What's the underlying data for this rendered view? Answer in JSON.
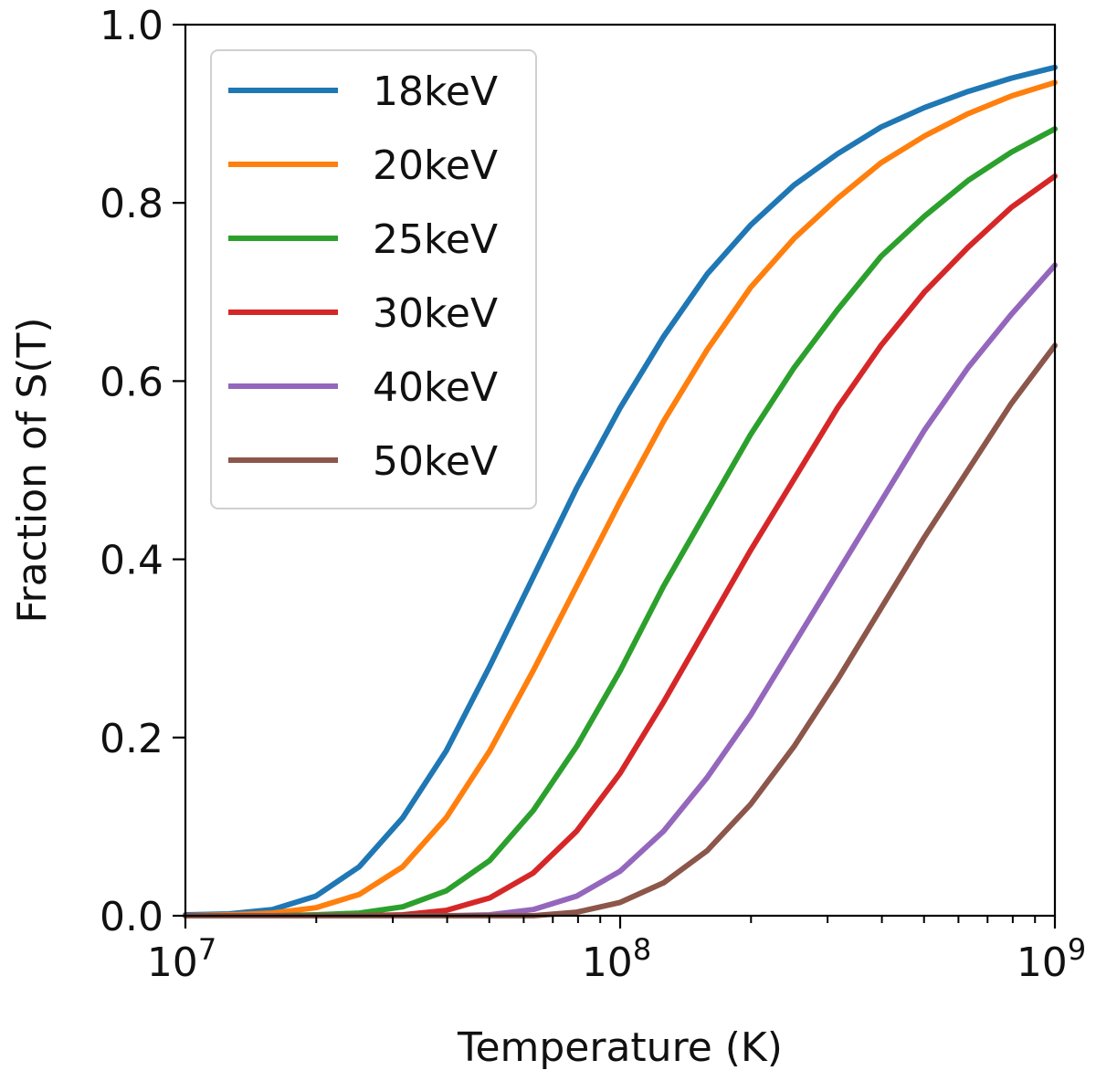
{
  "chart_data": {
    "type": "line",
    "title": "",
    "xlabel": "Temperature (K)",
    "ylabel": "Fraction of S(T)",
    "xscale": "log",
    "xlim": [
      10000000,
      1000000000
    ],
    "ylim": [
      0,
      1.0
    ],
    "grid": false,
    "legend_position": "top-left",
    "x_ticks": [
      {
        "value": 10000000,
        "base": "10",
        "exp": "7"
      },
      {
        "value": 100000000,
        "base": "10",
        "exp": "8"
      },
      {
        "value": 1000000000,
        "base": "10",
        "exp": "9"
      }
    ],
    "y_ticks": [
      "0.0",
      "0.2",
      "0.4",
      "0.6",
      "0.8",
      "1.0"
    ],
    "x": [
      10000000,
      12590000,
      15850000,
      19950000,
      25120000,
      31620000,
      39810000,
      50120000,
      63100000,
      79430000,
      100000000,
      125900000,
      158500000,
      199500000,
      251200000,
      316200000,
      398100000,
      501200000,
      631000000,
      794300000,
      1000000000
    ],
    "series": [
      {
        "name": "18keV",
        "color": "#1f77b4",
        "values": [
          0.001,
          0.002,
          0.007,
          0.022,
          0.055,
          0.11,
          0.185,
          0.28,
          0.38,
          0.48,
          0.57,
          0.65,
          0.72,
          0.775,
          0.82,
          0.855,
          0.885,
          0.907,
          0.925,
          0.94,
          0.952
        ]
      },
      {
        "name": "20keV",
        "color": "#ff7f0e",
        "values": [
          0.0,
          0.001,
          0.003,
          0.009,
          0.024,
          0.055,
          0.11,
          0.185,
          0.275,
          0.37,
          0.465,
          0.555,
          0.635,
          0.705,
          0.76,
          0.805,
          0.845,
          0.875,
          0.9,
          0.92,
          0.935
        ]
      },
      {
        "name": "25keV",
        "color": "#2ca02c",
        "values": [
          0.0,
          0.0,
          0.0,
          0.001,
          0.003,
          0.01,
          0.028,
          0.062,
          0.118,
          0.19,
          0.275,
          0.37,
          0.455,
          0.54,
          0.615,
          0.68,
          0.74,
          0.785,
          0.825,
          0.857,
          0.883
        ]
      },
      {
        "name": "30keV",
        "color": "#d62728",
        "values": [
          0.0,
          0.0,
          0.0,
          0.0,
          0.0,
          0.001,
          0.006,
          0.02,
          0.048,
          0.095,
          0.16,
          0.24,
          0.325,
          0.41,
          0.49,
          0.57,
          0.64,
          0.7,
          0.75,
          0.795,
          0.83
        ]
      },
      {
        "name": "40keV",
        "color": "#9467bd",
        "values": [
          0.0,
          0.0,
          0.0,
          0.0,
          0.0,
          0.0,
          0.0,
          0.001,
          0.007,
          0.022,
          0.05,
          0.095,
          0.155,
          0.225,
          0.305,
          0.385,
          0.465,
          0.545,
          0.615,
          0.675,
          0.73
        ]
      },
      {
        "name": "50keV",
        "color": "#8c564b",
        "values": [
          0.0,
          0.0,
          0.0,
          0.0,
          0.0,
          0.0,
          0.0,
          0.0,
          0.0,
          0.004,
          0.015,
          0.037,
          0.073,
          0.125,
          0.19,
          0.265,
          0.345,
          0.425,
          0.5,
          0.575,
          0.64
        ]
      }
    ]
  }
}
